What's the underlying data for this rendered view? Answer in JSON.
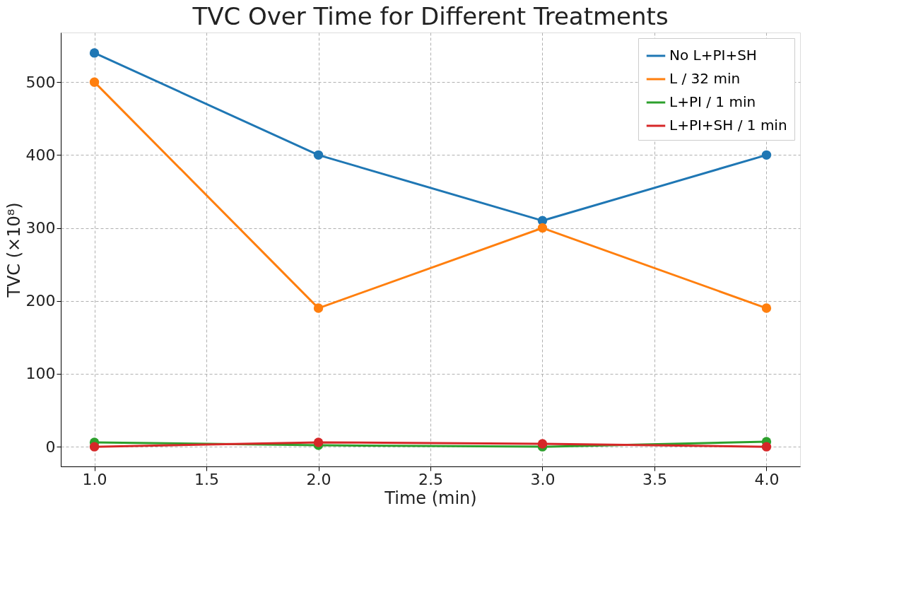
{
  "chart_data": {
    "type": "line",
    "title": "TVC Over Time for Different Treatments",
    "xlabel": "Time (min)",
    "ylabel": "TVC (×10⁸)",
    "x": [
      1.0,
      2.0,
      3.0,
      4.0
    ],
    "series": [
      {
        "name": "No L+PI+SH",
        "color": "#1f77b4",
        "values": [
          540,
          400,
          310,
          400
        ]
      },
      {
        "name": "L / 32 min",
        "color": "#ff7f0e",
        "values": [
          500,
          190,
          300,
          190
        ]
      },
      {
        "name": "L+PI / 1 min",
        "color": "#2ca02c",
        "values": [
          6,
          2,
          0,
          7
        ]
      },
      {
        "name": "L+PI+SH / 1 min",
        "color": "#d62728",
        "values": [
          0,
          6,
          4,
          0
        ]
      }
    ],
    "xlim": [
      0.85,
      4.15
    ],
    "ylim": [
      -27,
      568
    ],
    "xticks": [
      {
        "value": 1.0,
        "label": "1.0"
      },
      {
        "value": 1.5,
        "label": "1.5"
      },
      {
        "value": 2.0,
        "label": "2.0"
      },
      {
        "value": 2.5,
        "label": "2.5"
      },
      {
        "value": 3.0,
        "label": "3.0"
      },
      {
        "value": 3.5,
        "label": "3.5"
      },
      {
        "value": 4.0,
        "label": "4.0"
      }
    ],
    "yticks": [
      0,
      100,
      200,
      300,
      400,
      500
    ],
    "grid": true,
    "legend": "top right",
    "marker": "circle",
    "line_style": "solid"
  }
}
